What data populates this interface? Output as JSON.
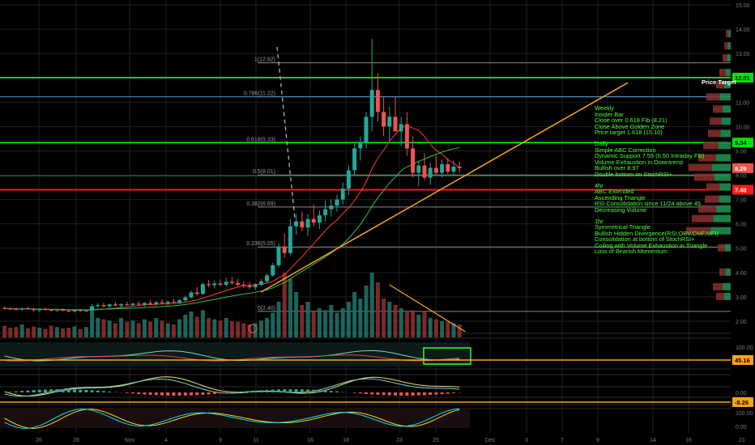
{
  "colors": {
    "background": "#000000",
    "grid": "#1f1f1f",
    "up": "#26a69a",
    "down": "#ef5350",
    "green_line": "#00e600",
    "red_line": "#ff1a1a",
    "blue_line": "#4d8fd9",
    "fib_line": "#8a8a8a",
    "orange": "#ffa31a",
    "annotation_text": "#4cff3a",
    "ma_red": "#ff3b3b",
    "ma_green": "#2ec24d"
  },
  "annotations": {
    "price_target": "Price Target",
    "weekly_lines": [
      "Weekly",
      "Insider Bar",
      "Close over 0.618 Fib (8.21)",
      "Close Above Golden Zone",
      "Price target 1.618 (15.10)"
    ],
    "daily_lines": [
      "Daily",
      "Simple ABC Correction",
      "Dynamic Support 7.55 (0.50 Intraday Fib)",
      "Volume Exhaustion in Downtrend",
      "Bullish over 8.97",
      "Double bottom on StochRSI+"
    ],
    "four_hour_lines": [
      "4hr",
      "ABC Extended",
      "Ascending Triangle",
      "RSI Consolidation since 11/24 above 45",
      "Decreasing Volume"
    ],
    "one_hour_lines": [
      "1hr",
      "Symmetrical Triangle",
      "Bullish Hidden Divergence(RSI,OBV,CMF,MFI)",
      "Consolidation at bottom of StochRSI+",
      "Coiling with Volume Exhaustion in Triangle",
      "Loss of Bearish Momentum"
    ]
  },
  "chart_data": {
    "type": "candlestick",
    "price_axis": {
      "ticks": [
        2.0,
        3.0,
        4.0,
        5.0,
        6.0,
        7.0,
        8.0,
        9.0,
        10.0,
        11.0,
        12.0,
        13.0,
        14.0,
        15.0
      ],
      "tick_labels": [
        "2.00",
        "3.00",
        "4.00",
        "5.00",
        "6.00",
        "7.00",
        "8.00",
        "9.00",
        "10.00",
        "11.00",
        "12.00",
        "13.00",
        "14.00",
        "15.00"
      ],
      "range": [
        1.5,
        15.0
      ]
    },
    "x_axis": {
      "labels": [
        "26",
        "28",
        "Nov",
        "4",
        "9",
        "11",
        "16",
        "18",
        "23",
        "25",
        "Dec",
        "3",
        "7",
        "9",
        "14",
        "16",
        "21"
      ]
    },
    "fib_levels": [
      {
        "label": "1(12.62)",
        "price": 12.62
      },
      {
        "label": "0.786(11.22)",
        "price": 11.22
      },
      {
        "label": "0.618(9.33)",
        "price": 9.33
      },
      {
        "label": "0.5(8.01)",
        "price": 8.01
      },
      {
        "label": "0.382(6.69)",
        "price": 6.69
      },
      {
        "label": "0.236(5.05)",
        "price": 5.05
      },
      {
        "label": "0(2.40)",
        "price": 2.4
      }
    ],
    "horizontal_levels": [
      {
        "price": 12.01,
        "color": "green",
        "label": "12.01"
      },
      {
        "price": 9.34,
        "color": "green",
        "label": "9.34"
      },
      {
        "price": 7.4,
        "color": "red",
        "label": "7.40"
      }
    ],
    "last_price": {
      "price": 8.29,
      "label": "8.29"
    },
    "candles": [
      [
        2.55,
        2.6,
        2.47,
        2.52
      ],
      [
        2.52,
        2.58,
        2.45,
        2.5
      ],
      [
        2.5,
        2.56,
        2.44,
        2.48
      ],
      [
        2.48,
        2.55,
        2.42,
        2.53
      ],
      [
        2.53,
        2.6,
        2.47,
        2.49
      ],
      [
        2.49,
        2.55,
        2.4,
        2.45
      ],
      [
        2.45,
        2.52,
        2.38,
        2.5
      ],
      [
        2.5,
        2.56,
        2.44,
        2.46
      ],
      [
        2.46,
        2.5,
        2.4,
        2.44
      ],
      [
        2.44,
        2.5,
        2.38,
        2.47
      ],
      [
        2.47,
        2.53,
        2.41,
        2.43
      ],
      [
        2.43,
        2.48,
        2.36,
        2.4
      ],
      [
        2.4,
        2.48,
        2.35,
        2.45
      ],
      [
        2.45,
        2.51,
        2.39,
        2.42
      ],
      [
        2.42,
        2.47,
        2.36,
        2.44
      ],
      [
        2.44,
        2.7,
        2.42,
        2.62
      ],
      [
        2.62,
        2.74,
        2.55,
        2.66
      ],
      [
        2.66,
        2.76,
        2.58,
        2.61
      ],
      [
        2.61,
        2.72,
        2.55,
        2.69
      ],
      [
        2.69,
        2.78,
        2.62,
        2.64
      ],
      [
        2.64,
        2.74,
        2.57,
        2.7
      ],
      [
        2.7,
        2.8,
        2.63,
        2.66
      ],
      [
        2.66,
        2.76,
        2.6,
        2.72
      ],
      [
        2.72,
        2.82,
        2.65,
        2.68
      ],
      [
        2.68,
        2.78,
        2.6,
        2.75
      ],
      [
        2.75,
        2.86,
        2.68,
        2.71
      ],
      [
        2.71,
        2.82,
        2.64,
        2.78
      ],
      [
        2.78,
        2.9,
        2.7,
        2.74
      ],
      [
        2.74,
        2.84,
        2.66,
        2.8
      ],
      [
        2.8,
        2.92,
        2.73,
        2.77
      ],
      [
        2.77,
        2.9,
        2.7,
        2.86
      ],
      [
        2.86,
        3.05,
        2.8,
        2.98
      ],
      [
        2.98,
        3.25,
        2.92,
        3.18
      ],
      [
        3.18,
        3.4,
        3.05,
        3.12
      ],
      [
        3.12,
        3.6,
        3.08,
        3.52
      ],
      [
        3.52,
        3.7,
        3.4,
        3.48
      ],
      [
        3.48,
        3.66,
        3.35,
        3.55
      ],
      [
        3.55,
        3.72,
        3.44,
        3.5
      ],
      [
        3.5,
        3.78,
        3.42,
        3.62
      ],
      [
        3.62,
        3.82,
        3.5,
        3.57
      ],
      [
        3.57,
        3.74,
        3.42,
        3.5
      ],
      [
        3.5,
        3.64,
        3.38,
        3.46
      ],
      [
        3.46,
        3.62,
        3.32,
        3.4
      ],
      [
        3.4,
        3.56,
        3.3,
        3.5
      ],
      [
        3.5,
        3.72,
        3.45,
        3.64
      ],
      [
        3.64,
        3.95,
        3.58,
        3.88
      ],
      [
        3.88,
        4.4,
        3.82,
        4.3
      ],
      [
        4.3,
        5.2,
        4.2,
        5.05
      ],
      [
        5.05,
        5.6,
        4.6,
        4.8
      ],
      [
        4.8,
        6.2,
        4.7,
        5.9
      ],
      [
        5.9,
        6.4,
        5.55,
        6.1
      ],
      [
        6.1,
        6.5,
        5.7,
        5.85
      ],
      [
        5.85,
        6.4,
        5.5,
        6.2
      ],
      [
        6.2,
        6.8,
        5.9,
        6.05
      ],
      [
        6.05,
        6.55,
        5.8,
        6.35
      ],
      [
        6.35,
        6.95,
        6.1,
        6.6
      ],
      [
        6.6,
        7.0,
        6.3,
        6.75
      ],
      [
        6.75,
        7.2,
        6.5,
        7.0
      ],
      [
        7.0,
        7.7,
        6.8,
        7.45
      ],
      [
        7.45,
        8.4,
        7.2,
        8.2
      ],
      [
        8.2,
        9.3,
        8.0,
        9.1
      ],
      [
        9.1,
        9.6,
        8.6,
        9.35
      ],
      [
        9.35,
        10.6,
        9.1,
        10.4
      ],
      [
        10.4,
        13.6,
        9.8,
        11.5
      ],
      [
        11.5,
        12.2,
        10.2,
        10.6
      ],
      [
        10.6,
        11.2,
        9.6,
        10.0
      ],
      [
        10.0,
        10.8,
        9.4,
        10.4
      ],
      [
        10.4,
        11.2,
        9.9,
        9.8
      ],
      [
        9.8,
        10.4,
        9.2,
        10.1
      ],
      [
        10.1,
        10.6,
        8.8,
        9.1
      ],
      [
        9.1,
        9.6,
        7.9,
        8.1
      ],
      [
        8.1,
        8.6,
        7.55,
        8.4
      ],
      [
        8.4,
        8.9,
        7.8,
        7.9
      ],
      [
        7.9,
        8.5,
        7.6,
        8.3
      ],
      [
        8.3,
        8.8,
        8.0,
        8.1
      ],
      [
        8.1,
        8.65,
        7.9,
        8.45
      ],
      [
        8.45,
        8.7,
        8.05,
        8.15
      ],
      [
        8.15,
        8.6,
        8.0,
        8.35
      ],
      [
        8.35,
        8.55,
        8.1,
        8.29
      ]
    ],
    "volume": [
      0.18,
      0.15,
      0.16,
      0.2,
      0.14,
      0.17,
      0.15,
      0.13,
      0.18,
      0.16,
      0.14,
      0.15,
      0.17,
      0.13,
      0.16,
      0.45,
      0.3,
      0.28,
      0.26,
      0.22,
      0.3,
      0.24,
      0.26,
      0.22,
      0.28,
      0.24,
      0.3,
      0.26,
      0.22,
      0.2,
      0.28,
      0.35,
      0.4,
      0.32,
      0.42,
      0.3,
      0.28,
      0.26,
      0.3,
      0.25,
      0.24,
      0.22,
      0.2,
      0.22,
      0.26,
      0.3,
      0.38,
      0.55,
      1.0,
      0.9,
      0.7,
      0.5,
      0.55,
      0.4,
      0.45,
      0.42,
      0.5,
      0.38,
      0.45,
      0.55,
      0.7,
      0.6,
      0.8,
      1.0,
      0.85,
      0.6,
      0.55,
      0.5,
      0.45,
      0.4,
      0.42,
      0.35,
      0.4,
      0.3,
      0.28,
      0.25,
      0.24,
      0.22,
      0.2
    ],
    "moving_averages": [
      {
        "color": "red",
        "period": 10
      },
      {
        "color": "green",
        "period": 20
      }
    ],
    "trendlines": [
      {
        "from": {
          "bar": 44,
          "price": 3.2
        },
        "to": {
          "bar": 110,
          "price": 11.8
        },
        "color": "orange"
      },
      {
        "from": {
          "bar": 66,
          "price": 9.0
        },
        "to": {
          "bar": 79,
          "price": 7.2
        },
        "color": "orange",
        "pane": "volume"
      }
    ],
    "indicator_levels": [
      {
        "pane": "rsi",
        "label": "45.16"
      },
      {
        "pane": "oscillator",
        "label": "0.00"
      },
      {
        "pane": "oscillator",
        "label": "-8.26"
      },
      {
        "pane": "stoch",
        "label": "100.00"
      },
      {
        "pane": "stoch",
        "label": "0.00"
      }
    ],
    "rsi_axis_label": "100.00"
  }
}
